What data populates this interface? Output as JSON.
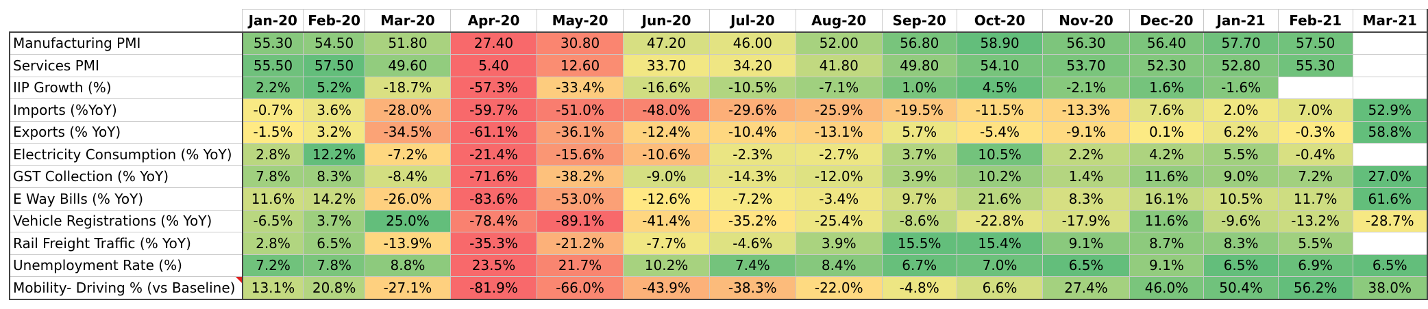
{
  "columns": [
    "Jan-20",
    "Feb-20",
    "Mar-20",
    "Apr-20",
    "May-20",
    "Jun-20",
    "Jul-20",
    "Aug-20",
    "Sep-20",
    "Oct-20",
    "Nov-20",
    "Dec-20",
    "Jan-21",
    "Feb-21",
    "Mar-21"
  ],
  "column_widths": [
    90,
    90,
    127,
    128,
    128,
    128,
    128,
    128,
    110,
    128,
    128,
    110,
    110,
    110,
    110
  ],
  "label_width": 340,
  "colors": {
    "low": "#f8696b",
    "mid": "#ffeb84",
    "high": "#63be7b"
  },
  "rows": [
    {
      "label": "Manufacturing PMI",
      "values": [
        "55.30",
        "54.50",
        "51.80",
        "27.40",
        "30.80",
        "47.20",
        "46.00",
        "52.00",
        "56.80",
        "58.90",
        "56.30",
        "56.40",
        "57.70",
        "57.50",
        ""
      ],
      "numbers": [
        55.3,
        54.5,
        51.8,
        27.4,
        30.8,
        47.2,
        46.0,
        52.0,
        56.8,
        58.9,
        56.3,
        56.4,
        57.7,
        57.5,
        null
      ]
    },
    {
      "label": "Services PMI",
      "values": [
        "55.50",
        "57.50",
        "49.60",
        "5.40",
        "12.60",
        "33.70",
        "34.20",
        "41.80",
        "49.80",
        "54.10",
        "53.70",
        "52.30",
        "52.80",
        "55.30",
        ""
      ],
      "numbers": [
        55.5,
        57.5,
        49.6,
        5.4,
        12.6,
        33.7,
        34.2,
        41.8,
        49.8,
        54.1,
        53.7,
        52.3,
        52.8,
        55.3,
        null
      ]
    },
    {
      "label": "IIP Growth (%)",
      "values": [
        "2.2%",
        "5.2%",
        "-18.7%",
        "-57.3%",
        "-33.4%",
        "-16.6%",
        "-10.5%",
        "-7.1%",
        "1.0%",
        "4.5%",
        "-2.1%",
        "1.6%",
        "-1.6%",
        "",
        ""
      ],
      "numbers": [
        2.2,
        5.2,
        -18.7,
        -57.3,
        -33.4,
        -16.6,
        -10.5,
        -7.1,
        1.0,
        4.5,
        -2.1,
        1.6,
        -1.6,
        null,
        null
      ]
    },
    {
      "label": "Imports (%YoY)",
      "values": [
        "-0.7%",
        "3.6%",
        "-28.0%",
        "-59.7%",
        "-51.0%",
        "-48.0%",
        "-29.6%",
        "-25.9%",
        "-19.5%",
        "-11.5%",
        "-13.3%",
        "7.6%",
        "2.0%",
        "7.0%",
        "52.9%"
      ],
      "numbers": [
        -0.7,
        3.6,
        -28.0,
        -59.7,
        -51.0,
        -48.0,
        -29.6,
        -25.9,
        -19.5,
        -11.5,
        -13.3,
        7.6,
        2.0,
        7.0,
        52.9
      ]
    },
    {
      "label": "Exports (% YoY)",
      "values": [
        "-1.5%",
        "3.2%",
        "-34.5%",
        "-61.1%",
        "-36.1%",
        "-12.4%",
        "-10.4%",
        "-13.1%",
        "5.7%",
        "-5.4%",
        "-9.1%",
        "0.1%",
        "6.2%",
        "-0.3%",
        "58.8%"
      ],
      "numbers": [
        -1.5,
        3.2,
        -34.5,
        -61.1,
        -36.1,
        -12.4,
        -10.4,
        -13.1,
        5.7,
        -5.4,
        -9.1,
        0.1,
        6.2,
        -0.3,
        58.8
      ]
    },
    {
      "label": "Electricity Consumption  (% YoY)",
      "values": [
        "2.8%",
        "12.2%",
        "-7.2%",
        "-21.4%",
        "-15.6%",
        "-10.6%",
        "-2.3%",
        "-2.7%",
        "3.7%",
        "10.5%",
        "2.2%",
        "4.2%",
        "5.5%",
        "-0.4%",
        ""
      ],
      "numbers": [
        2.8,
        12.2,
        -7.2,
        -21.4,
        -15.6,
        -10.6,
        -2.3,
        -2.7,
        3.7,
        10.5,
        2.2,
        4.2,
        5.5,
        -0.4,
        null
      ]
    },
    {
      "label": "GST Collection  (% YoY)",
      "values": [
        "7.8%",
        "8.3%",
        "-8.4%",
        "-71.6%",
        "-38.2%",
        "-9.0%",
        "-14.3%",
        "-12.0%",
        "3.9%",
        "10.2%",
        "1.4%",
        "11.6%",
        "9.0%",
        "7.2%",
        "27.0%"
      ],
      "numbers": [
        7.8,
        8.3,
        -8.4,
        -71.6,
        -38.2,
        -9.0,
        -14.3,
        -12.0,
        3.9,
        10.2,
        1.4,
        11.6,
        9.0,
        7.2,
        27.0
      ]
    },
    {
      "label": "E Way Bills  (% YoY)",
      "values": [
        "11.6%",
        "14.2%",
        "-26.0%",
        "-83.6%",
        "-53.0%",
        "-12.6%",
        "-7.2%",
        "-3.4%",
        "9.7%",
        "21.6%",
        "8.3%",
        "16.1%",
        "10.5%",
        "11.7%",
        "61.6%"
      ],
      "numbers": [
        11.6,
        14.2,
        -26.0,
        -83.6,
        -53.0,
        -12.6,
        -7.2,
        -3.4,
        9.7,
        21.6,
        8.3,
        16.1,
        10.5,
        11.7,
        61.6
      ]
    },
    {
      "label": "Vehicle Registrations  (% YoY)",
      "values": [
        "-6.5%",
        "3.7%",
        "25.0%",
        "-78.4%",
        "-89.1%",
        "-41.4%",
        "-35.2%",
        "-25.4%",
        "-8.6%",
        "-22.8%",
        "-17.9%",
        "11.6%",
        "-9.6%",
        "-13.2%",
        "-28.7%"
      ],
      "numbers": [
        -6.5,
        3.7,
        25.0,
        -78.4,
        -89.1,
        -41.4,
        -35.2,
        -25.4,
        -8.6,
        -22.8,
        -17.9,
        11.6,
        -9.6,
        -13.2,
        -28.7
      ]
    },
    {
      "label": "Rail Freight Traffic  (% YoY)",
      "values": [
        "2.8%",
        "6.5%",
        "-13.9%",
        "-35.3%",
        "-21.2%",
        "-7.7%",
        "-4.6%",
        "3.9%",
        "15.5%",
        "15.4%",
        "9.1%",
        "8.7%",
        "8.3%",
        "5.5%",
        ""
      ],
      "numbers": [
        2.8,
        6.5,
        -13.9,
        -35.3,
        -21.2,
        -7.7,
        -4.6,
        3.9,
        15.5,
        15.4,
        9.1,
        8.7,
        8.3,
        5.5,
        null
      ]
    },
    {
      "label": "Unemployment Rate (%)",
      "values": [
        "7.2%",
        "7.8%",
        "8.8%",
        "23.5%",
        "21.7%",
        "10.2%",
        "7.4%",
        "8.4%",
        "6.7%",
        "7.0%",
        "6.5%",
        "9.1%",
        "6.5%",
        "6.9%",
        "6.5%"
      ],
      "numbers": [
        7.2,
        7.8,
        8.8,
        23.5,
        21.7,
        10.2,
        7.4,
        8.4,
        6.7,
        7.0,
        6.5,
        9.1,
        6.5,
        6.9,
        6.5
      ],
      "reverse": true
    },
    {
      "label": "Mobility- Driving % (vs Baseline)",
      "values": [
        "13.1%",
        "20.8%",
        "-27.1%",
        "-81.9%",
        "-66.0%",
        "-43.9%",
        "-38.3%",
        "-22.0%",
        "-4.8%",
        "6.6%",
        "27.4%",
        "46.0%",
        "50.4%",
        "56.2%",
        "38.0%"
      ],
      "numbers": [
        13.1,
        20.8,
        -27.1,
        -81.9,
        -66.0,
        -43.9,
        -38.3,
        -22.0,
        -4.8,
        6.6,
        27.4,
        46.0,
        50.4,
        56.2,
        38.0
      ],
      "comment": true
    }
  ]
}
